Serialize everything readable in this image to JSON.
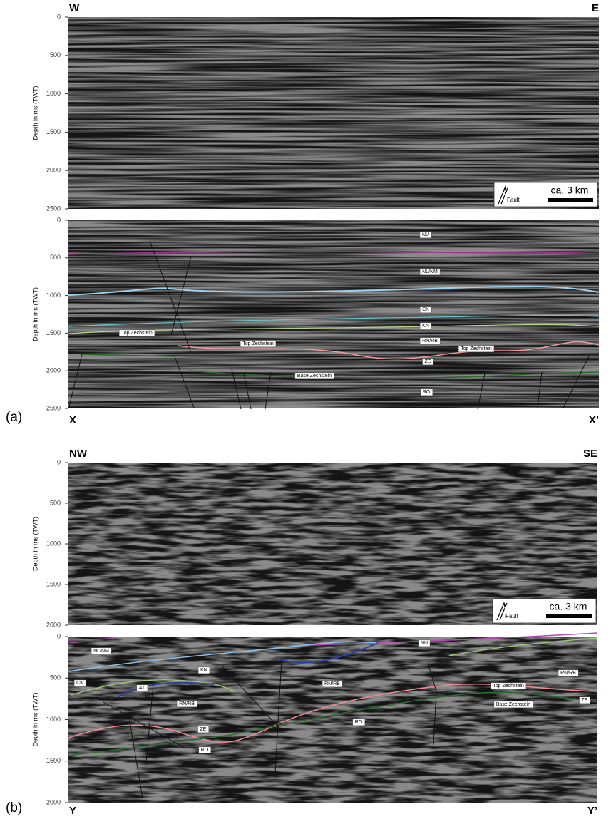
{
  "panels": [
    {
      "label": "(a)",
      "sections": [
        {
          "left": "W",
          "right": "E",
          "axis_label": "Depth in ms (TWT)",
          "ylim": [
            0,
            2500
          ],
          "yticks": [
            0,
            500,
            1000,
            1500,
            2000,
            2500
          ],
          "legend": "Fault",
          "scale_bar": "ca. 3 km"
        },
        {
          "left": "X",
          "right": "X’",
          "axis_label": "Depth in ms (TWT)",
          "ylim": [
            0,
            2500
          ],
          "yticks": [
            0,
            500,
            1000,
            1500,
            2000,
            2500
          ],
          "horizon_labels": [
            "NU",
            "NL/NM",
            "CK",
            "KN",
            "RN/RB",
            "ZE",
            "RO",
            "Top Zechstein",
            "Top Zechstein",
            "Top Zechstein",
            "Base Zechstein"
          ]
        }
      ]
    },
    {
      "label": "(b)",
      "sections": [
        {
          "left": "NW",
          "right": "SE",
          "axis_label": "Depth in ms (TWT)",
          "ylim": [
            0,
            2000
          ],
          "yticks": [
            0,
            500,
            1000,
            1500,
            2000
          ],
          "legend": "Fault",
          "scale_bar": "ca. 3 km"
        },
        {
          "left": "Y",
          "right": "Y’",
          "axis_label": "Depth in ms (TWT)",
          "ylim": [
            0,
            2000
          ],
          "yticks": [
            0,
            500,
            1000,
            1500,
            2000
          ],
          "horizon_labels": [
            "NU",
            "NL/NM",
            "CK",
            "KN",
            "AT",
            "RN/RB",
            "ZE",
            "RO",
            "RN/RB",
            "RO",
            "RN/RB",
            "Top Zechstein",
            "Base Zechstein",
            "ZE"
          ]
        }
      ]
    }
  ]
}
